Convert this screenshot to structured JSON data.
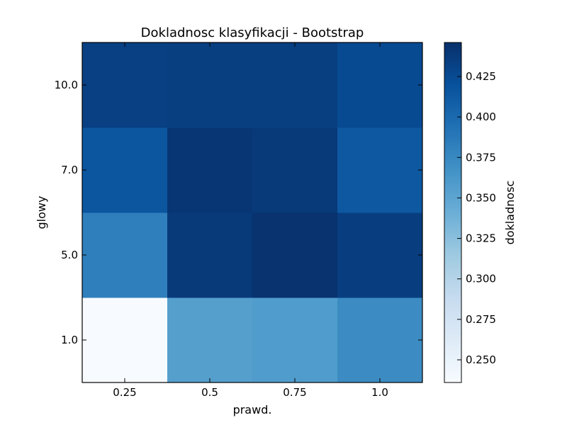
{
  "chart_data": {
    "type": "heatmap",
    "title": "Dokladnosc klasyfikacji - Bootstrap",
    "xlabel": "prawd.",
    "ylabel": "glowy",
    "x_categories": [
      "0.25",
      "0.5",
      "0.75",
      "1.0"
    ],
    "y_categories": [
      "1.0",
      "5.0",
      "7.0",
      "10.0"
    ],
    "values": [
      [
        0.236,
        0.355,
        0.358,
        0.372
      ],
      [
        0.382,
        0.438,
        0.444,
        0.435
      ],
      [
        0.416,
        0.441,
        0.439,
        0.414
      ],
      [
        0.433,
        0.434,
        0.434,
        0.425
      ]
    ],
    "colorbar": {
      "label": "dokladnosc",
      "range": [
        0.236,
        0.446
      ],
      "ticks": [
        "0.250",
        "0.275",
        "0.300",
        "0.325",
        "0.350",
        "0.375",
        "0.400",
        "0.425"
      ],
      "colormap": "Blues"
    },
    "grid": false
  }
}
